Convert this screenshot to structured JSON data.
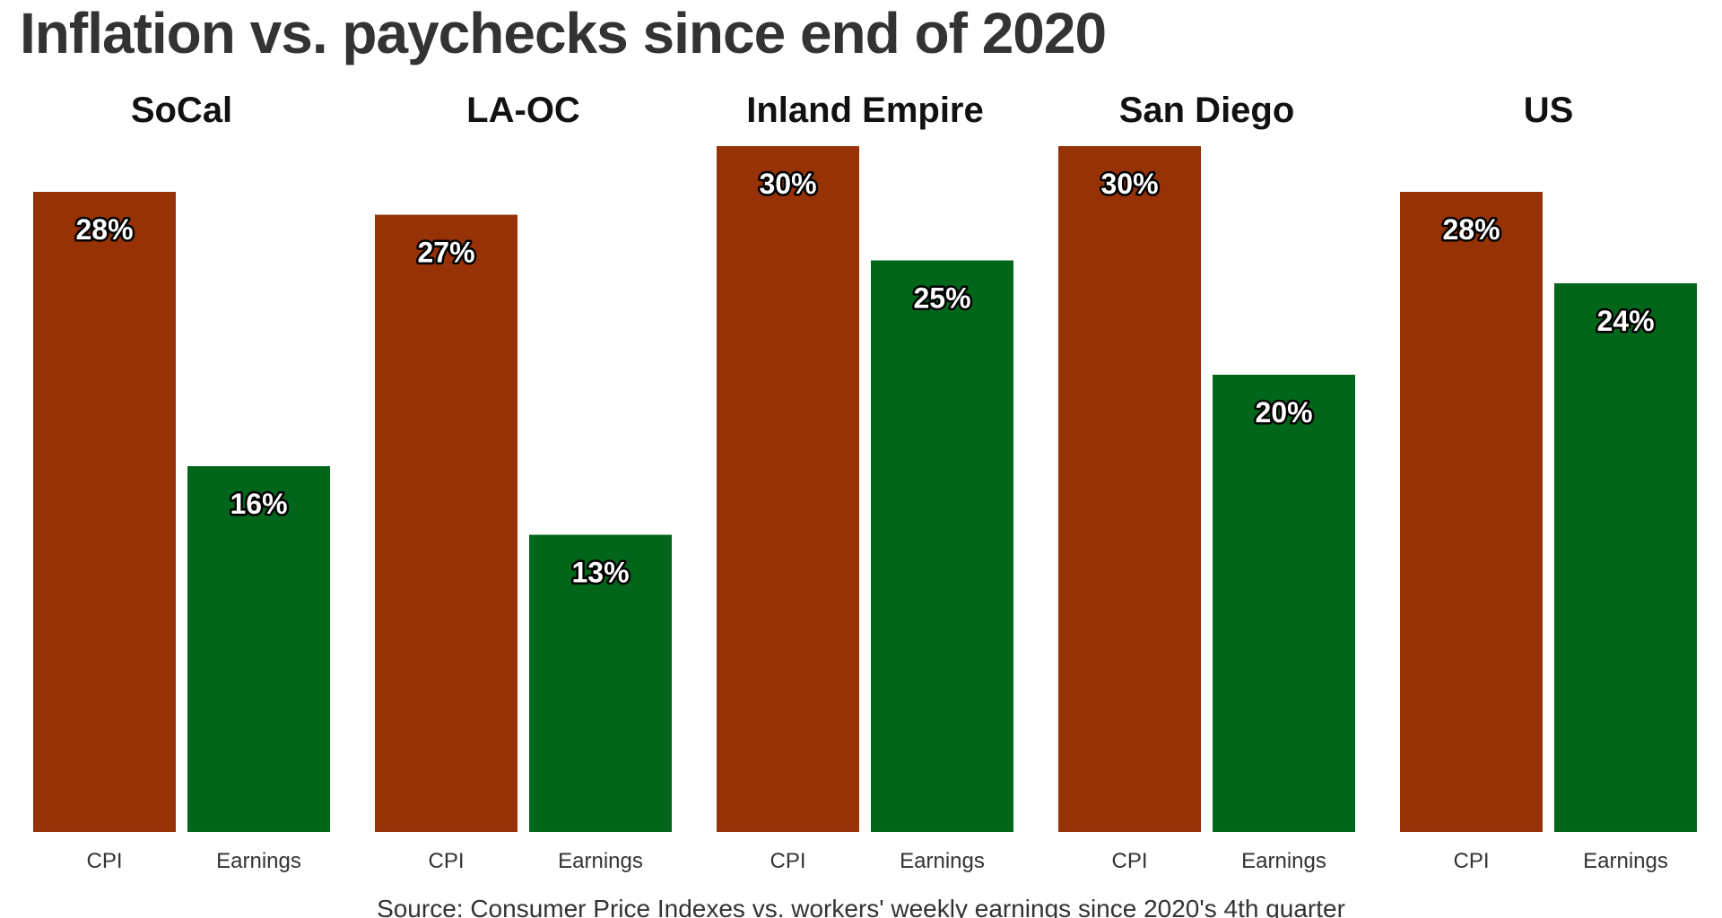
{
  "chart_data": {
    "type": "bar",
    "title": "Inflation vs. paychecks since end of 2020",
    "source": "Source: Consumer Price Indexes vs. workers' weekly earnings since 2020's 4th quarter",
    "categories": [
      "CPI",
      "Earnings"
    ],
    "value_suffix": "%",
    "ylim": [
      0,
      30
    ],
    "grid": false,
    "colors": {
      "CPI": "#963206",
      "Earnings": "#02661a"
    },
    "panels": [
      {
        "name": "SoCal",
        "values": [
          28,
          16
        ]
      },
      {
        "name": "LA-OC",
        "values": [
          27,
          13
        ]
      },
      {
        "name": "Inland Empire",
        "values": [
          30,
          25
        ]
      },
      {
        "name": "San Diego",
        "values": [
          30,
          20
        ]
      },
      {
        "name": "US",
        "values": [
          28,
          24
        ]
      }
    ]
  }
}
